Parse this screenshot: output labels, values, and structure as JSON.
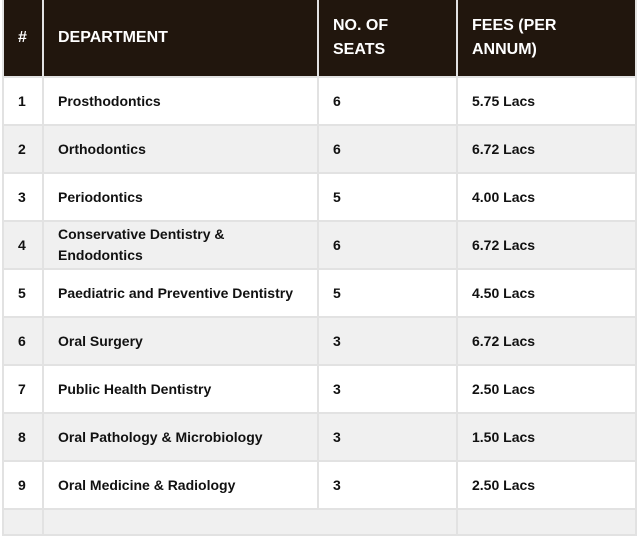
{
  "table": {
    "headers": [
      "#",
      "DEPARTMENT",
      "NO. OF SEATS",
      "FEES (PER ANNUM)"
    ],
    "rows": [
      {
        "num": "1",
        "department": "Prosthodontics",
        "seats": "6",
        "fees": "5.75 Lacs"
      },
      {
        "num": "2",
        "department": "Orthodontics",
        "seats": "6",
        "fees": "6.72 Lacs"
      },
      {
        "num": "3",
        "department": "Periodontics",
        "seats": "5",
        "fees": "4.00 Lacs"
      },
      {
        "num": "4",
        "department": "Conservative Dentistry & Endodontics",
        "seats": "6",
        "fees": "6.72 Lacs"
      },
      {
        "num": "5",
        "department": "Paediatric and Preventive Dentistry",
        "seats": "5",
        "fees": "4.50 Lacs"
      },
      {
        "num": "6",
        "department": "Oral Surgery",
        "seats": "3",
        "fees": "6.72 Lacs"
      },
      {
        "num": "7",
        "department": "Public Health Dentistry",
        "seats": "3",
        "fees": "2.50 Lacs"
      },
      {
        "num": "8",
        "department": "Oral Pathology & Microbiology",
        "seats": "3",
        "fees": "1.50 Lacs"
      },
      {
        "num": "9",
        "department": "Oral Medicine & Radiology",
        "seats": "3",
        "fees": "2.50 Lacs"
      }
    ]
  }
}
